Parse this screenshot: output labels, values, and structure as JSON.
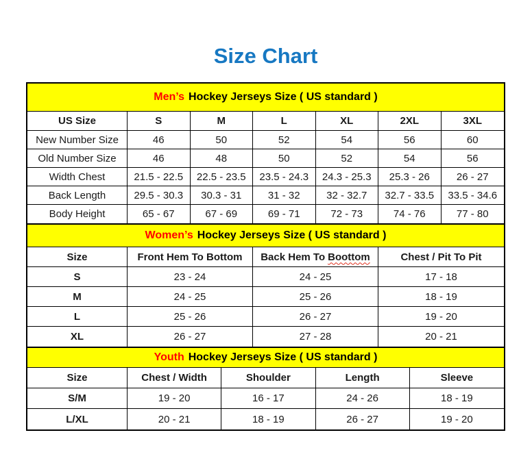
{
  "page": {
    "title": "Size Chart"
  },
  "colors": {
    "title_blue": "#1778C2",
    "banner_yellow": "#FFFF00",
    "accent_red": "#FF0000",
    "squiggle_red": "#E0301E",
    "border_black": "#000000"
  },
  "tables": [
    {
      "id": "mens",
      "banner": {
        "highlight": "Men’s",
        "rest": "Hockey Jerseys Size ( US standard )"
      },
      "columns": [
        "US Size",
        "S",
        "M",
        "L",
        "XL",
        "2XL",
        "3XL"
      ],
      "rows": [
        {
          "label": "New Number Size",
          "values": [
            "46",
            "50",
            "52",
            "54",
            "56",
            "60"
          ]
        },
        {
          "label": "Old Number Size",
          "values": [
            "46",
            "48",
            "50",
            "52",
            "54",
            "56"
          ]
        },
        {
          "label": "Width Chest",
          "values": [
            "21.5 - 22.5",
            "22.5 - 23.5",
            "23.5 - 24.3",
            "24.3 - 25.3",
            "25.3 - 26",
            "26 - 27"
          ]
        },
        {
          "label": "Back Length",
          "values": [
            "29.5 - 30.3",
            "30.3 - 31",
            "31 - 32",
            "32 - 32.7",
            "32.7 - 33.5",
            "33.5 - 34.6"
          ]
        },
        {
          "label": "Body Height",
          "values": [
            "65 - 67",
            "67 - 69",
            "69 - 71",
            "72 - 73",
            "74 - 76",
            "77 - 80"
          ]
        }
      ]
    },
    {
      "id": "womens",
      "banner": {
        "highlight": "Women’s",
        "rest": "Hockey Jerseys Size ( US standard )"
      },
      "columns": [
        "Size",
        "Front Hem To Bottom",
        {
          "text": "Back Hem To",
          "misspelled": "Boottom"
        },
        "Chest / Pit To Pit"
      ],
      "rows": [
        {
          "label": "S",
          "values": [
            "23 - 24",
            "24 - 25",
            "17 - 18"
          ]
        },
        {
          "label": "M",
          "values": [
            "24 - 25",
            "25 - 26",
            "18 - 19"
          ]
        },
        {
          "label": "L",
          "values": [
            "25 - 26",
            "26 - 27",
            "19 - 20"
          ]
        },
        {
          "label": "XL",
          "values": [
            "26 - 27",
            "27 - 28",
            "20 - 21"
          ]
        }
      ]
    },
    {
      "id": "youth",
      "banner": {
        "highlight": "Youth",
        "rest": "Hockey Jerseys Size ( US standard )"
      },
      "columns": [
        "Size",
        "Chest / Width",
        "Shoulder",
        "Length",
        "Sleeve"
      ],
      "rows": [
        {
          "label": "S/M",
          "values": [
            "19 - 20",
            "16 - 17",
            "24 - 26",
            "18 - 19"
          ]
        },
        {
          "label": "L/XL",
          "values": [
            "20 - 21",
            "18 - 19",
            "26 - 27",
            "19 - 20"
          ]
        }
      ]
    }
  ]
}
